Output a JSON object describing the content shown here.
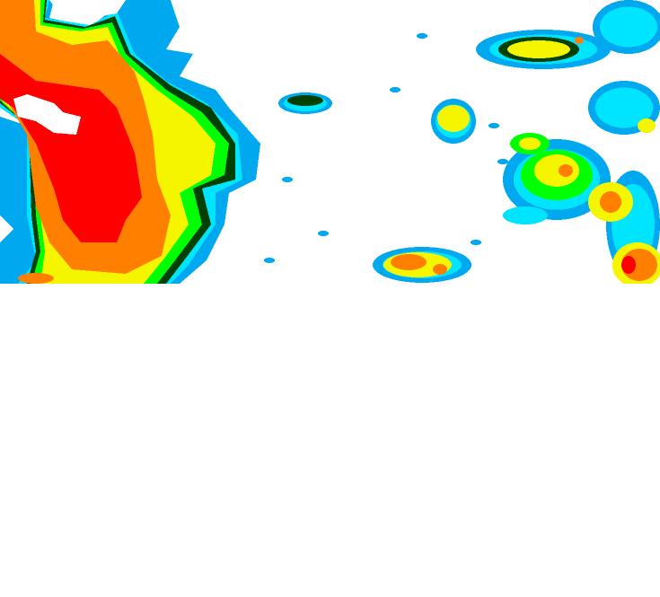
{
  "radar": {
    "colors": {
      "light_blue": "#00a8f0",
      "cyan": "#00e5ff",
      "dark_green": "#004000",
      "green": "#00ff00",
      "yellow": "#f5f500",
      "orange": "#ff8000",
      "red": "#ff0000"
    }
  }
}
